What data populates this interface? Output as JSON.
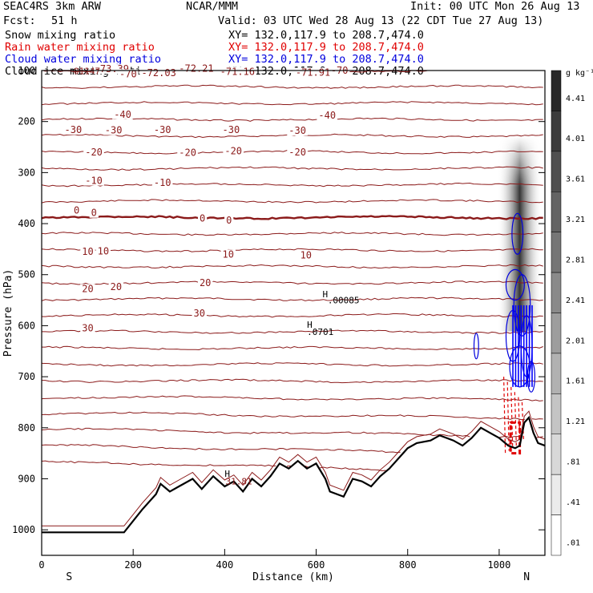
{
  "header": {
    "run": "SEAC4RS  3km ARW",
    "org": "NCAR/MMM",
    "init": "Init: 00 UTC Mon 26 Aug 13",
    "fcst_label": "Fcst:",
    "fcst_value": "51 h",
    "valid": "Valid: 03 UTC Wed 28 Aug 13 (22 CDT Tue 27 Aug 13)"
  },
  "fields": [
    {
      "name": "Snow mixing ratio",
      "xy": "XY= 132.0,117.9 to 208.7,474.0",
      "color": "#000000"
    },
    {
      "name": "Rain water mixing ratio",
      "xy": "XY= 132.0,117.9 to 208.7,474.0",
      "color": "#e00000"
    },
    {
      "name": "Cloud water mixing ratio",
      "xy": "XY= 132.0,117.9 to 208.7,474.0",
      "color": "#0000dd"
    },
    {
      "name": "Cloud ice mixing ratio",
      "xy": "XY= 132.0,117.9 to 208.7,474.0",
      "color": "#000000"
    }
  ],
  "chart_data": {
    "type": "contour-cross-section",
    "xlabel": "Distance (km)",
    "ylabel": "Pressure (hPa)",
    "xlim": [
      0,
      1100
    ],
    "ylim": [
      1050,
      100
    ],
    "x_ticks": [
      0,
      200,
      400,
      600,
      800,
      1000
    ],
    "y_ticks": [
      100,
      200,
      300,
      400,
      500,
      600,
      700,
      800,
      900,
      1000
    ],
    "x_end_labels": {
      "left": "S",
      "right": "N"
    },
    "colorbar": {
      "unit": "g kg⁻¹",
      "labels": [
        "4.41",
        "4.01",
        "3.61",
        "3.21",
        "2.81",
        "2.41",
        "2.01",
        "1.61",
        "1.21",
        ".81",
        ".41",
        ".01"
      ]
    },
    "temperature_contours": [
      {
        "label": "-70",
        "p": 108
      },
      {
        "label": "-40",
        "p": 185
      },
      {
        "label": "-30",
        "p": 215
      },
      {
        "label": "-20",
        "p": 260
      },
      {
        "label": "-10",
        "p": 318
      },
      {
        "label": "0",
        "p": 376
      },
      {
        "label": "10",
        "p": 455
      },
      {
        "label": "20",
        "p": 515
      },
      {
        "label": "30",
        "p": 575
      }
    ],
    "temperature_label_positions": [
      {
        "text": "-73.39",
        "x": 115,
        "p": 97
      },
      {
        "text": "-70",
        "x": 170,
        "p": 107
      },
      {
        "text": "-72.03",
        "x": 218,
        "p": 105
      },
      {
        "text": "-72.21",
        "x": 300,
        "p": 96
      },
      {
        "text": "-71.16",
        "x": 390,
        "p": 102
      },
      {
        "text": "-71.91",
        "x": 555,
        "p": 104
      },
      {
        "text": "-70",
        "x": 632,
        "p": 100
      },
      {
        "text": "-40",
        "x": 158,
        "p": 186
      },
      {
        "text": "-40",
        "x": 605,
        "p": 188
      },
      {
        "text": "-30",
        "x": 50,
        "p": 216
      },
      {
        "text": "-30",
        "x": 138,
        "p": 217
      },
      {
        "text": "-30",
        "x": 245,
        "p": 216
      },
      {
        "text": "-30",
        "x": 395,
        "p": 216
      },
      {
        "text": "-30",
        "x": 540,
        "p": 218
      },
      {
        "text": "-20",
        "x": 95,
        "p": 260
      },
      {
        "text": "-20",
        "x": 300,
        "p": 261
      },
      {
        "text": "-20",
        "x": 400,
        "p": 258
      },
      {
        "text": "-20",
        "x": 540,
        "p": 260
      },
      {
        "text": "-10",
        "x": 95,
        "p": 316
      },
      {
        "text": "-10",
        "x": 245,
        "p": 320
      },
      {
        "text": "0",
        "x": 70,
        "p": 374
      },
      {
        "text": "0",
        "x": 108,
        "p": 379
      },
      {
        "text": "0",
        "x": 345,
        "p": 390
      },
      {
        "text": "0",
        "x": 403,
        "p": 394
      },
      {
        "text": "10",
        "x": 88,
        "p": 455
      },
      {
        "text": "10",
        "x": 122,
        "p": 454
      },
      {
        "text": "10",
        "x": 395,
        "p": 460
      },
      {
        "text": "10",
        "x": 565,
        "p": 462
      },
      {
        "text": "20",
        "x": 88,
        "p": 528
      },
      {
        "text": "20",
        "x": 150,
        "p": 524
      },
      {
        "text": "20",
        "x": 345,
        "p": 516
      },
      {
        "text": "30",
        "x": 332,
        "p": 576
      },
      {
        "text": "30",
        "x": 88,
        "p": 605
      }
    ],
    "point_labels": [
      {
        "text": "H",
        "x": 614,
        "p": 538
      },
      {
        "text": ".00085",
        "x": 625,
        "p": 550
      },
      {
        "text": "H",
        "x": 580,
        "p": 598
      },
      {
        "text": ".0701",
        "x": 580,
        "p": 612
      },
      {
        "text": "H",
        "x": 400,
        "p": 890
      },
      {
        "text": "31.81",
        "x": 402,
        "p": 905
      },
      {
        "text": "01147",
        "x": 70,
        "p": 101
      }
    ],
    "terrain_profile": [
      [
        0,
        1005
      ],
      [
        180,
        1005
      ],
      [
        220,
        960
      ],
      [
        250,
        930
      ],
      [
        260,
        910
      ],
      [
        280,
        925
      ],
      [
        300,
        915
      ],
      [
        330,
        900
      ],
      [
        350,
        920
      ],
      [
        375,
        895
      ],
      [
        400,
        915
      ],
      [
        420,
        905
      ],
      [
        440,
        925
      ],
      [
        460,
        900
      ],
      [
        480,
        915
      ],
      [
        500,
        895
      ],
      [
        520,
        870
      ],
      [
        540,
        880
      ],
      [
        560,
        865
      ],
      [
        580,
        880
      ],
      [
        600,
        870
      ],
      [
        620,
        900
      ],
      [
        630,
        925
      ],
      [
        660,
        935
      ],
      [
        680,
        900
      ],
      [
        700,
        905
      ],
      [
        720,
        915
      ],
      [
        740,
        895
      ],
      [
        760,
        880
      ],
      [
        780,
        860
      ],
      [
        800,
        840
      ],
      [
        820,
        830
      ],
      [
        850,
        825
      ],
      [
        870,
        815
      ],
      [
        900,
        825
      ],
      [
        920,
        835
      ],
      [
        940,
        820
      ],
      [
        960,
        800
      ],
      [
        980,
        810
      ],
      [
        1000,
        820
      ],
      [
        1020,
        835
      ],
      [
        1035,
        840
      ],
      [
        1045,
        835
      ],
      [
        1055,
        790
      ],
      [
        1065,
        780
      ],
      [
        1075,
        810
      ],
      [
        1085,
        830
      ],
      [
        1100,
        835
      ]
    ],
    "snow_column": {
      "x_center": 1045,
      "p_top": 260,
      "p_bottom": 360,
      "max": 4.41
    },
    "cloud_water_region": {
      "x_range": [
        1020,
        1100
      ],
      "p_range": [
        420,
        760
      ]
    },
    "rain_region": {
      "x_range": [
        1010,
        1060
      ],
      "p_range": [
        700,
        850
      ]
    }
  }
}
